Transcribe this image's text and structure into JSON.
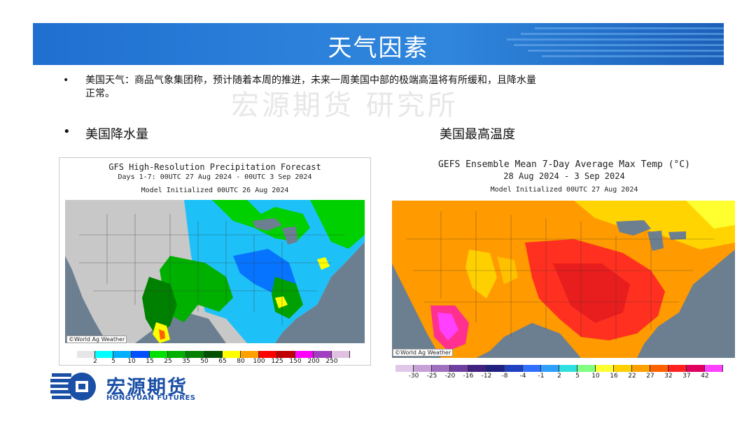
{
  "header": {
    "title": "天气因素"
  },
  "watermark": "宏源期货 研究所",
  "bullets": {
    "main_line1": "美国天气：商品气象集团称，预计随着本周的推进，未来一周美国中部的极端高温将有所缓和，且降水量",
    "main_line2": "正常。",
    "marker": "•"
  },
  "sections": {
    "left_heading": "美国降水量",
    "right_heading": "美国最高温度"
  },
  "precip_map": {
    "title1": "GFS High-Resolution Precipitation Forecast",
    "title2": "Days 1-7: 00UTC 27 Aug 2024 - 00UTC 3 Sep 2024",
    "title3": "Model Initialized 00UTC 26 Aug 2024",
    "credit": "©World Ag Weather",
    "legend_labels": [
      "2",
      "5",
      "10",
      "15",
      "25",
      "35",
      "50",
      "65",
      "80",
      "100",
      "125",
      "150",
      "200",
      "250"
    ],
    "legend_colors": [
      "#e6e6e6",
      "#00ffff",
      "#00b0ff",
      "#0050ff",
      "#00e000",
      "#00b000",
      "#008000",
      "#005000",
      "#ffff00",
      "#ffa000",
      "#ff0000",
      "#c00000",
      "#ff00ff",
      "#a040c0",
      "#e0c0e0"
    ]
  },
  "temp_map": {
    "title1": "GEFS Ensemble Mean 7-Day Average Max Temp (°C)",
    "title2": "28 Aug 2024 - 3 Sep 2024",
    "title3": "Model Initialized 00UTC 27 Aug 2024",
    "credit": "©World Ag Weather",
    "legend_labels": [
      "-30",
      "-25",
      "-20",
      "-16",
      "-12",
      "-8",
      "-4",
      "-1",
      "2",
      "5",
      "10",
      "16",
      "22",
      "27",
      "32",
      "37",
      "42"
    ],
    "legend_colors": [
      "#e0c8e8",
      "#c8a0d8",
      "#a070c0",
      "#7040a0",
      "#402080",
      "#202080",
      "#2040c0",
      "#3070ff",
      "#30a0ff",
      "#30e0e0",
      "#80ff80",
      "#ffff30",
      "#ffd000",
      "#ffa000",
      "#ff6000",
      "#ff2020",
      "#e00060",
      "#ff40ff"
    ]
  },
  "logo": {
    "cn": "宏源期货",
    "en": "HONGYUAN FUTURES"
  }
}
